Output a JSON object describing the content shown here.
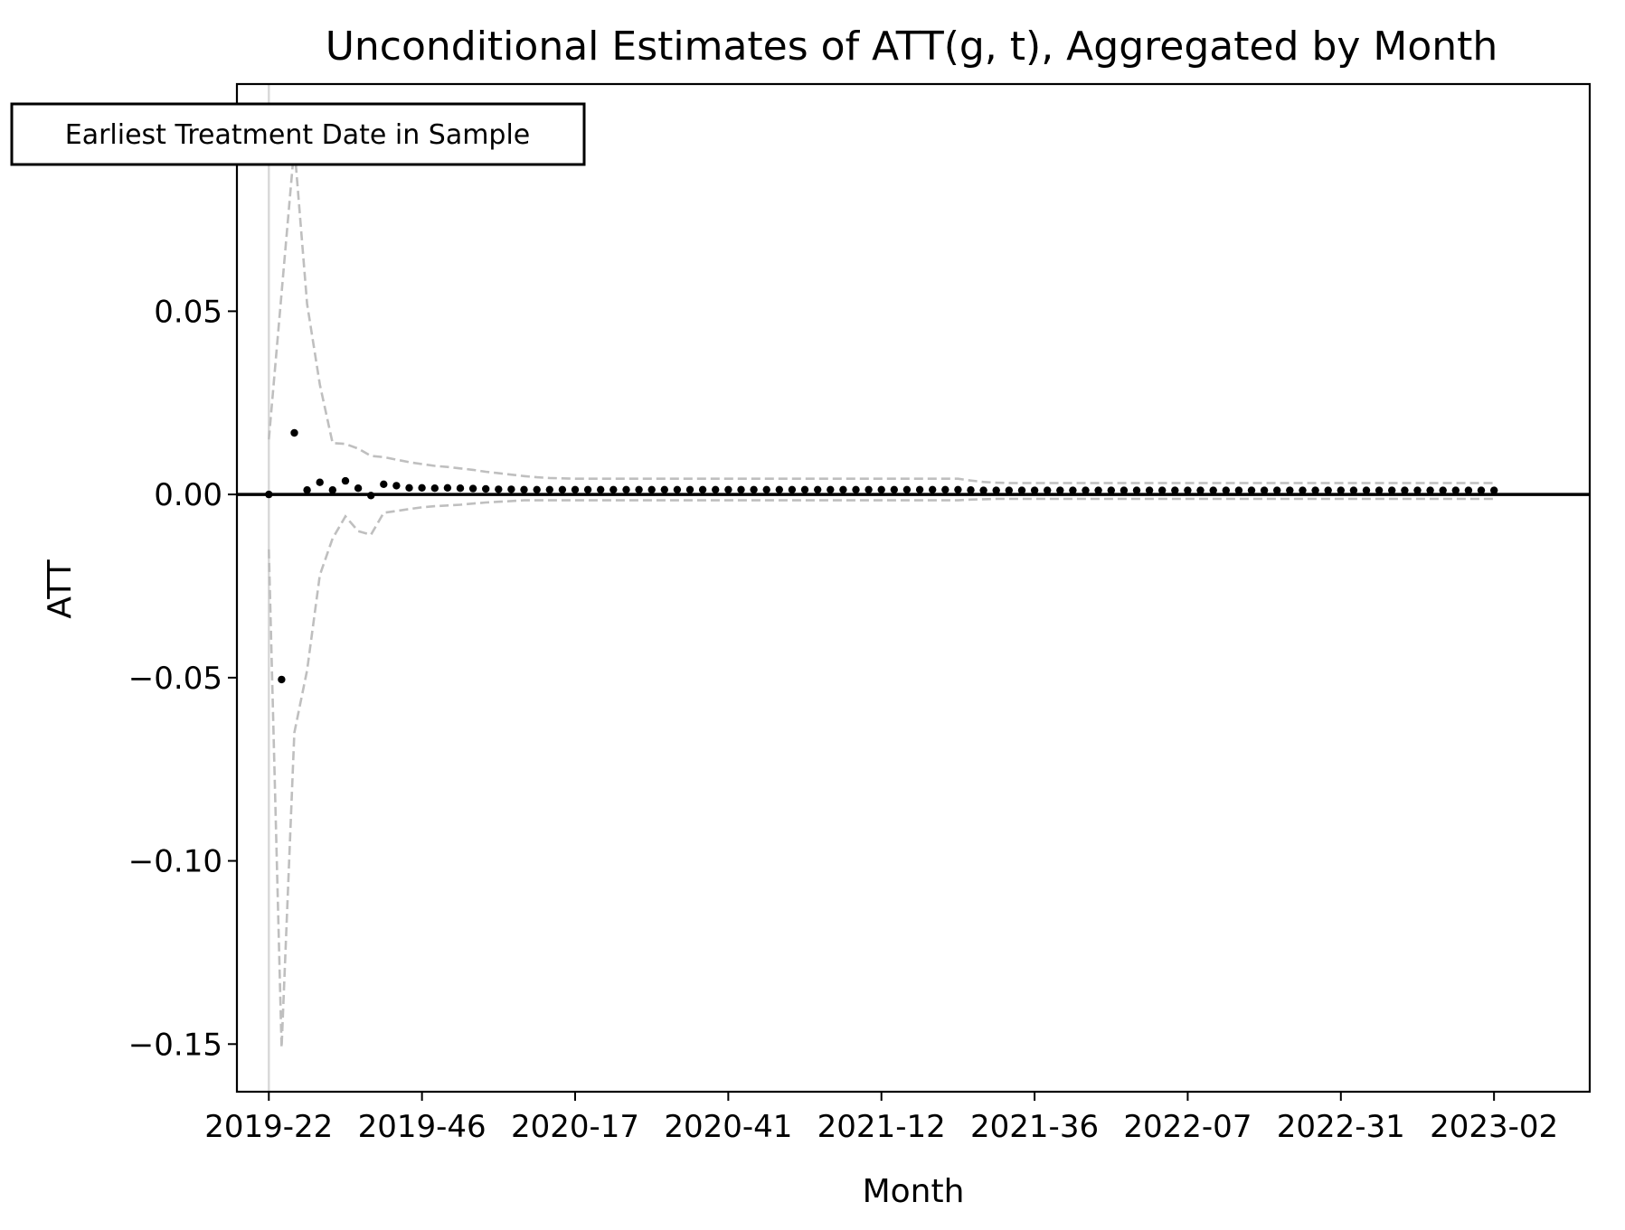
{
  "chart_data": {
    "type": "scatter",
    "title": "Unconditional Estimates of ATT(g, t), Aggregated by Month",
    "xlabel": "Month",
    "ylabel": "ATT",
    "annotation": "Earliest Treatment Date in Sample",
    "x_ticks": [
      "2019-22",
      "2019-46",
      "2020-17",
      "2020-41",
      "2021-12",
      "2021-36",
      "2022-07",
      "2022-31",
      "2023-02"
    ],
    "y_ticks": [
      0.05,
      0.0,
      -0.05,
      -0.1,
      -0.15
    ],
    "y_tick_labels": [
      "0.05",
      "0.00",
      "−0.05",
      "−0.10",
      "−0.15"
    ],
    "ylim": [
      -0.163,
      0.112
    ],
    "x_range_weeks": [
      -5,
      207
    ],
    "treatment_line_week": 0,
    "zero_line": true,
    "colors": {
      "points": "#000000",
      "ci": "#bfbfbf",
      "zero_line": "#000000",
      "treatment_line": "#d9d9d9"
    },
    "series": [
      {
        "role": "point-estimates",
        "x": [
          0,
          2,
          4,
          6,
          8,
          10,
          12,
          14,
          16,
          18,
          20,
          22,
          24,
          26,
          28,
          30,
          32,
          34,
          36,
          38,
          40,
          42,
          44,
          46,
          48,
          50,
          52,
          54,
          56,
          58,
          60,
          62,
          64,
          66,
          68,
          70,
          72,
          74,
          76,
          78,
          80,
          82,
          84,
          86,
          88,
          90,
          92,
          94,
          96,
          98,
          100,
          102,
          104,
          106,
          108,
          110,
          112,
          114,
          116,
          118,
          120,
          122,
          124,
          126,
          128,
          130,
          132,
          134,
          136,
          138,
          140,
          142,
          144,
          146,
          148,
          150,
          152,
          154,
          156,
          158,
          160,
          162,
          164,
          166,
          168,
          170,
          172,
          174,
          176,
          178,
          180,
          182,
          184,
          186,
          188,
          190,
          192
        ],
        "y": [
          0.0,
          -0.0505,
          0.0168,
          0.0012,
          0.0033,
          0.0012,
          0.0037,
          0.0017,
          -0.0003,
          0.0028,
          0.0024,
          0.0018,
          0.0018,
          0.0017,
          0.0018,
          0.0017,
          0.0016,
          0.0015,
          0.0014,
          0.0014,
          0.0013,
          0.0013,
          0.0013,
          0.0013,
          0.0013,
          0.0013,
          0.0013,
          0.0013,
          0.0013,
          0.0013,
          0.0013,
          0.0013,
          0.0013,
          0.0013,
          0.0013,
          0.0013,
          0.0013,
          0.0013,
          0.0013,
          0.0013,
          0.0013,
          0.0013,
          0.0013,
          0.0013,
          0.0013,
          0.0013,
          0.0013,
          0.0013,
          0.0013,
          0.0013,
          0.0013,
          0.0013,
          0.0013,
          0.0013,
          0.0013,
          0.0012,
          0.0011,
          0.0011,
          0.0011,
          0.0011,
          0.0011,
          0.0011,
          0.0011,
          0.0011,
          0.0011,
          0.0011,
          0.0011,
          0.0011,
          0.0011,
          0.0011,
          0.0011,
          0.0011,
          0.0011,
          0.0011,
          0.0011,
          0.0011,
          0.0011,
          0.0011,
          0.0011,
          0.0011,
          0.0011,
          0.0011,
          0.0011,
          0.0011,
          0.0011,
          0.0011,
          0.0011,
          0.0011,
          0.0011,
          0.0011,
          0.0011,
          0.0011,
          0.0011,
          0.0011,
          0.0011,
          0.0011,
          0.0011
        ]
      },
      {
        "role": "upper-ci",
        "x": [
          0,
          2,
          4,
          6,
          8,
          10,
          12,
          14,
          16,
          18,
          20,
          22,
          24,
          26,
          28,
          30,
          32,
          34,
          36,
          38,
          40,
          42,
          44,
          46,
          48,
          50,
          52,
          54,
          56,
          58,
          60,
          62,
          64,
          66,
          68,
          70,
          72,
          74,
          76,
          78,
          80,
          82,
          84,
          86,
          88,
          90,
          92,
          94,
          96,
          98,
          100,
          102,
          104,
          106,
          108,
          110,
          112,
          114,
          116,
          118,
          120,
          122,
          124,
          126,
          128,
          130,
          132,
          134,
          136,
          138,
          140,
          142,
          144,
          146,
          148,
          150,
          152,
          154,
          156,
          158,
          160,
          162,
          164,
          166,
          168,
          170,
          172,
          174,
          176,
          178,
          180,
          182,
          184,
          186,
          188,
          190,
          192
        ],
        "y": [
          0.015,
          0.055,
          0.095,
          0.052,
          0.03,
          0.014,
          0.0138,
          0.0125,
          0.0105,
          0.0102,
          0.0095,
          0.0088,
          0.0083,
          0.0078,
          0.0075,
          0.0071,
          0.0067,
          0.0062,
          0.0058,
          0.0054,
          0.005,
          0.0047,
          0.0045,
          0.0044,
          0.0043,
          0.0043,
          0.0043,
          0.0043,
          0.0043,
          0.0043,
          0.0043,
          0.0043,
          0.0043,
          0.0043,
          0.0043,
          0.0043,
          0.0043,
          0.0043,
          0.0043,
          0.0043,
          0.0043,
          0.0043,
          0.0043,
          0.0043,
          0.0043,
          0.0043,
          0.0043,
          0.0043,
          0.0043,
          0.0043,
          0.0043,
          0.0043,
          0.0043,
          0.0043,
          0.0043,
          0.0038,
          0.0034,
          0.0032,
          0.0031,
          0.0031,
          0.0031,
          0.0031,
          0.0031,
          0.0031,
          0.0031,
          0.0031,
          0.0031,
          0.0031,
          0.0031,
          0.0031,
          0.0031,
          0.0031,
          0.0031,
          0.0031,
          0.0031,
          0.0031,
          0.0031,
          0.0031,
          0.0031,
          0.0031,
          0.0031,
          0.0031,
          0.0031,
          0.0031,
          0.0031,
          0.0031,
          0.0031,
          0.0031,
          0.0031,
          0.0031,
          0.0031,
          0.0031,
          0.0031,
          0.0031,
          0.0031,
          0.0031,
          0.0031
        ]
      },
      {
        "role": "lower-ci",
        "x": [
          0,
          2,
          4,
          6,
          8,
          10,
          12,
          14,
          16,
          18,
          20,
          22,
          24,
          26,
          28,
          30,
          32,
          34,
          36,
          38,
          40,
          42,
          44,
          46,
          48,
          50,
          52,
          54,
          56,
          58,
          60,
          62,
          64,
          66,
          68,
          70,
          72,
          74,
          76,
          78,
          80,
          82,
          84,
          86,
          88,
          90,
          92,
          94,
          96,
          98,
          100,
          102,
          104,
          106,
          108,
          110,
          112,
          114,
          116,
          118,
          120,
          122,
          124,
          126,
          128,
          130,
          132,
          134,
          136,
          138,
          140,
          142,
          144,
          146,
          148,
          150,
          152,
          154,
          156,
          158,
          160,
          162,
          164,
          166,
          168,
          170,
          172,
          174,
          176,
          178,
          180,
          182,
          184,
          186,
          188,
          190,
          192
        ],
        "y": [
          -0.015,
          -0.151,
          -0.065,
          -0.048,
          -0.022,
          -0.012,
          -0.006,
          -0.01,
          -0.011,
          -0.005,
          -0.0045,
          -0.004,
          -0.0035,
          -0.0032,
          -0.003,
          -0.0028,
          -0.0025,
          -0.0022,
          -0.002,
          -0.0018,
          -0.0016,
          -0.0016,
          -0.0016,
          -0.0016,
          -0.0016,
          -0.0016,
          -0.0016,
          -0.0016,
          -0.0016,
          -0.0016,
          -0.0016,
          -0.0016,
          -0.0016,
          -0.0016,
          -0.0016,
          -0.0016,
          -0.0016,
          -0.0016,
          -0.0016,
          -0.0016,
          -0.0016,
          -0.0016,
          -0.0016,
          -0.0016,
          -0.0016,
          -0.0016,
          -0.0016,
          -0.0016,
          -0.0016,
          -0.0016,
          -0.0016,
          -0.0016,
          -0.0016,
          -0.0016,
          -0.0016,
          -0.0014,
          -0.0013,
          -0.0012,
          -0.0012,
          -0.0012,
          -0.0012,
          -0.0012,
          -0.0012,
          -0.0012,
          -0.0012,
          -0.0012,
          -0.0012,
          -0.0012,
          -0.0012,
          -0.0012,
          -0.0012,
          -0.0012,
          -0.0012,
          -0.0012,
          -0.0012,
          -0.0012,
          -0.0012,
          -0.0012,
          -0.0012,
          -0.0012,
          -0.0012,
          -0.0012,
          -0.0012,
          -0.0012,
          -0.0012,
          -0.0012,
          -0.0012,
          -0.0012,
          -0.0012,
          -0.0012,
          -0.0012,
          -0.0012,
          -0.0012,
          -0.0012,
          -0.0012,
          -0.0012,
          -0.0012
        ]
      }
    ]
  }
}
